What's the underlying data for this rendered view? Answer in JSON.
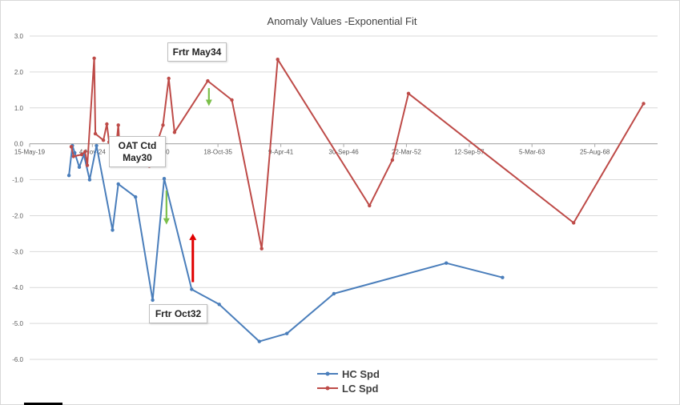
{
  "chart_data": {
    "type": "line",
    "title": "Anomaly Values -Exponential Fit",
    "ylim": [
      -6.0,
      3.0
    ],
    "yticks": [
      "3.0",
      "2.0",
      "1.0",
      "0.0",
      "-1.0",
      "-2.0",
      "-3.0",
      "-4.0",
      "-5.0",
      "-6.0"
    ],
    "ytick_values": [
      3,
      2,
      1,
      0,
      -1,
      -2,
      -3,
      -4,
      -5,
      -6
    ],
    "xticks": [
      "15-May-19",
      "4-Nov-24",
      "26-Apr-30",
      "18-Oct-35",
      "9-Apr-41",
      "30-Sep-46",
      "22-Mar-52",
      "12-Sep-57",
      "5-Mar-63",
      "25-Aug-68"
    ],
    "xtick_years": [
      1919.37,
      1924.84,
      1930.32,
      1935.79,
      1941.27,
      1946.75,
      1952.22,
      1957.7,
      1963.17,
      1968.65
    ],
    "xlim": [
      1919.37,
      1974.12
    ],
    "series": [
      {
        "name": "HC Spd",
        "color": "#4a7ebb",
        "points": [
          [
            1922.8,
            -0.88
          ],
          [
            1923.1,
            -0.05
          ],
          [
            1923.3,
            -0.25
          ],
          [
            1923.7,
            -0.65
          ],
          [
            1924.1,
            -0.3
          ],
          [
            1924.6,
            -1.0
          ],
          [
            1925.2,
            -0.05
          ],
          [
            1926.6,
            -2.4
          ],
          [
            1927.1,
            -1.12
          ],
          [
            1928.6,
            -1.48
          ],
          [
            1930.1,
            -4.35
          ],
          [
            1931.1,
            -0.97
          ],
          [
            1933.5,
            -4.05
          ],
          [
            1935.9,
            -4.47
          ],
          [
            1939.4,
            -5.5
          ],
          [
            1941.8,
            -5.28
          ],
          [
            1945.9,
            -4.17
          ],
          [
            1955.7,
            -3.32
          ],
          [
            1960.6,
            -3.72
          ]
        ]
      },
      {
        "name": "LC Spd",
        "color": "#be4b48",
        "points": [
          [
            1923.0,
            -0.08
          ],
          [
            1923.2,
            -0.35
          ],
          [
            1923.9,
            -0.3
          ],
          [
            1924.2,
            -0.22
          ],
          [
            1924.4,
            -0.6
          ],
          [
            1925.0,
            2.38
          ],
          [
            1925.1,
            0.28
          ],
          [
            1925.8,
            0.1
          ],
          [
            1926.1,
            0.55
          ],
          [
            1926.3,
            0.05
          ],
          [
            1926.8,
            -0.45
          ],
          [
            1927.1,
            0.52
          ],
          [
            1927.3,
            -0.6
          ],
          [
            1929.8,
            -0.62
          ],
          [
            1931.0,
            0.52
          ],
          [
            1931.5,
            1.82
          ],
          [
            1932.0,
            0.32
          ],
          [
            1934.9,
            1.75
          ],
          [
            1937.0,
            1.22
          ],
          [
            1939.6,
            -2.92
          ],
          [
            1941.0,
            2.35
          ],
          [
            1949.0,
            -1.72
          ],
          [
            1951.0,
            -0.45
          ],
          [
            1952.4,
            1.4
          ],
          [
            1966.8,
            -2.2
          ],
          [
            1972.9,
            1.12
          ]
        ]
      }
    ],
    "legend_position": "bottom-center",
    "grid": true,
    "annotations": {
      "frtr_may34": "Frtr May34",
      "oat_line1": "OAT Ctd",
      "oat_line2": "May30",
      "frtr_oct32": "Frtr Oct32"
    },
    "arrows": [
      {
        "name": "green-arrow-upper",
        "color": "#7bbf4a",
        "direction": "down",
        "x_year": 1935.0,
        "from": 1.55,
        "to": 1.05
      },
      {
        "name": "green-arrow-lower",
        "color": "#7bbf4a",
        "direction": "down",
        "x_year": 1931.3,
        "from": -1.3,
        "to": -2.25
      },
      {
        "name": "red-arrow",
        "color": "#e00000",
        "direction": "up",
        "x_year": 1933.6,
        "from": -3.85,
        "to": -2.5
      }
    ]
  }
}
